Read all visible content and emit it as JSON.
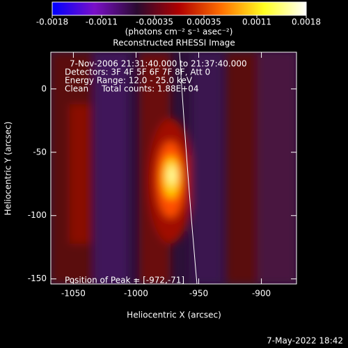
{
  "chart_data": {
    "type": "image",
    "title": "Reconstructed RHESSI Image",
    "xlabel": "Heliocentric X (arcsec)",
    "ylabel": "Heliocentric Y (arcsec)",
    "xlim": [
      -1068,
      -872
    ],
    "xticks": [
      -1050,
      -1000,
      -950,
      -900
    ],
    "ylim": [
      -154,
      29
    ],
    "yticks": [
      -150,
      -100,
      -50,
      0
    ],
    "colorbar": {
      "lim": [
        -0.0018,
        0.0018
      ],
      "ticks": [
        -0.0018,
        -0.0011,
        -0.00035,
        0.00035,
        0.0011,
        0.0018
      ],
      "label": "(photons cm⁻² s⁻¹ asec⁻²)",
      "colors": [
        "#0000ff",
        "#7a10c8",
        "#2a0a30",
        "#b00000",
        "#ff7000",
        "#ffff20",
        "#ffffff"
      ]
    },
    "annotations": [
      "7-Nov-2006 21:31:40.000 to 21:37:40.000",
      "Detectors: 3F 4F 5F 6F 7F 8F, Att 0",
      "Energy Range: 12.0 - 25.0 keV",
      "Clean     Total counts: 1.88E+04"
    ],
    "peak_label": "Position of Peak = [-972,-71]",
    "timestamp": "7-May-2022 18:42"
  }
}
